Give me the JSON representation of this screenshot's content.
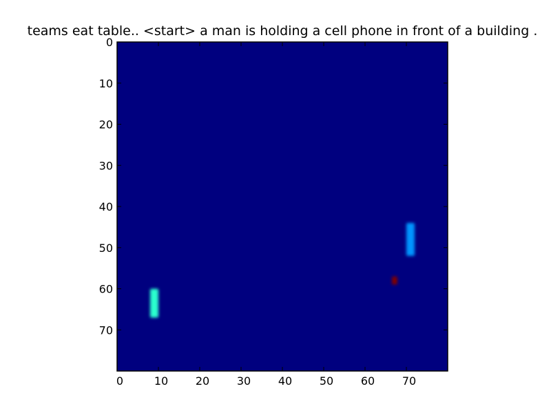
{
  "chart_data": {
    "type": "heatmap",
    "title": "teams eat table.. <start> a man is holding a cell phone in front of a building .",
    "xlabel": "",
    "ylabel": "",
    "xlim": [
      0,
      80
    ],
    "ylim": [
      80,
      0
    ],
    "x_ticks": [
      0,
      10,
      20,
      30,
      40,
      50,
      60,
      70
    ],
    "y_ticks": [
      0,
      10,
      20,
      30,
      40,
      50,
      60,
      70
    ],
    "grid": false,
    "colormap": "jet",
    "background_value": 0.0,
    "background_color": "#00007f",
    "hotspots": [
      {
        "x_range": [
          70,
          72
        ],
        "y_range": [
          44,
          52
        ],
        "value": 0.33,
        "color": "#0094ff"
      },
      {
        "x_range": [
          8,
          10
        ],
        "y_range": [
          60,
          67
        ],
        "value": 0.5,
        "color": "#29ffce"
      },
      {
        "x_range": [
          66.5,
          67.8
        ],
        "y_range": [
          57,
          59
        ],
        "value": 1.0,
        "color": "#7f0000"
      }
    ]
  }
}
